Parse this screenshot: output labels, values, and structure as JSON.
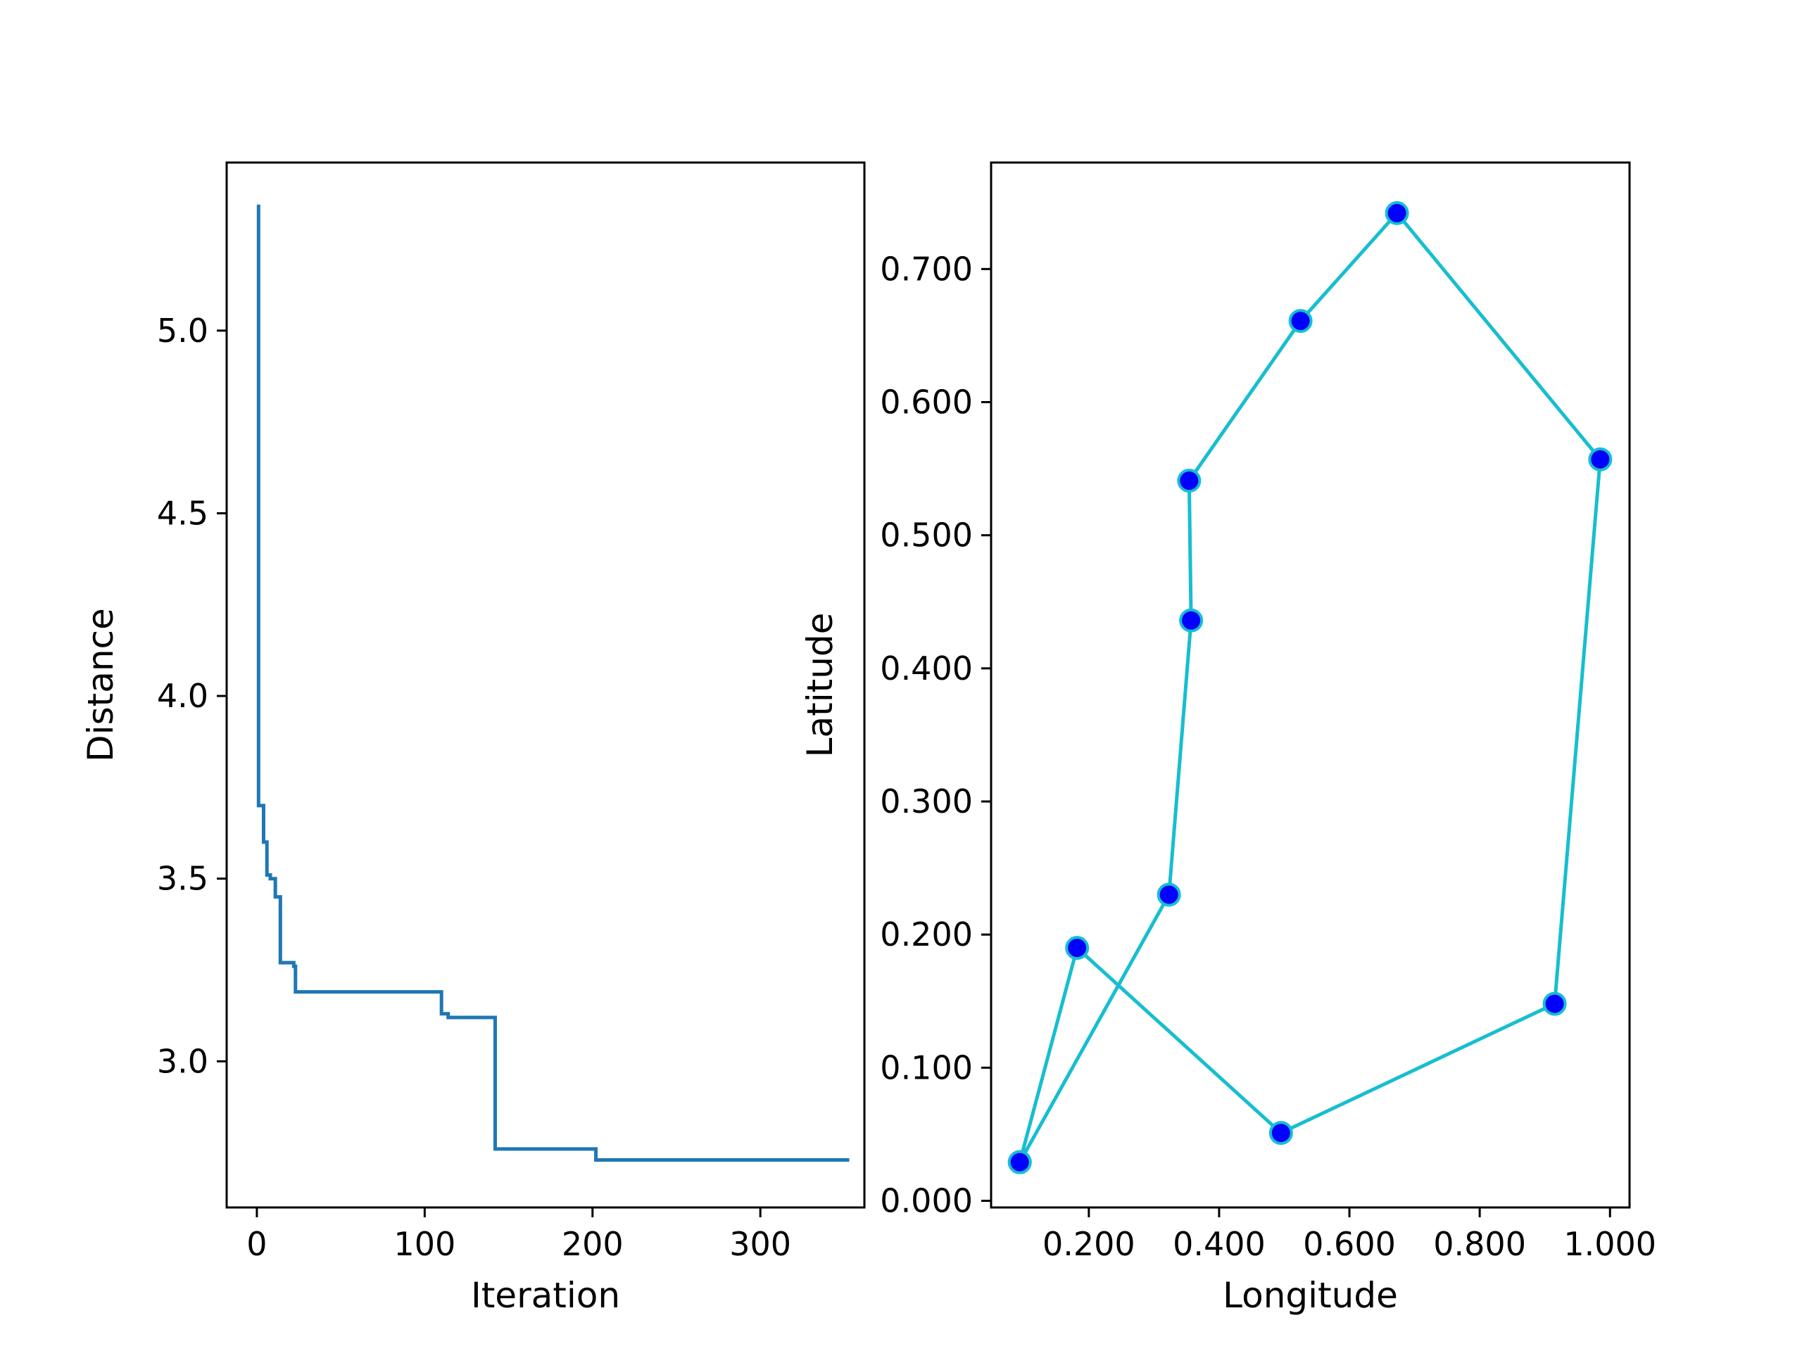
{
  "chart_data": [
    {
      "type": "line",
      "xlabel": "Iteration",
      "ylabel": "Distance",
      "xlim": [
        -18,
        362
      ],
      "ylim": [
        2.6,
        5.46
      ],
      "xticks": [
        0,
        100,
        200,
        300
      ],
      "xtick_labels": [
        "0",
        "100",
        "200",
        "300"
      ],
      "yticks": [
        3.0,
        3.5,
        4.0,
        4.5,
        5.0
      ],
      "ytick_labels": [
        "3.0",
        "3.5",
        "4.0",
        "4.5",
        "5.0"
      ],
      "grid": false,
      "series": [
        {
          "color": "#1f77b4",
          "step": true,
          "x": [
            0,
            1,
            4,
            6,
            8,
            11,
            12,
            13,
            14,
            16,
            20,
            22,
            23,
            109,
            110,
            113,
            114,
            141,
            142,
            200,
            202,
            353
          ],
          "y": [
            5.34,
            3.7,
            3.6,
            3.51,
            3.5,
            3.45,
            3.45,
            3.45,
            3.27,
            3.27,
            3.27,
            3.26,
            3.19,
            3.19,
            3.13,
            3.13,
            3.12,
            3.12,
            2.76,
            2.76,
            2.73,
            2.73
          ]
        }
      ]
    },
    {
      "type": "scatter",
      "xlabel": "Longitude",
      "ylabel": "Latitude",
      "xlim": [
        0.05,
        1.03
      ],
      "ylim": [
        -0.005,
        0.78
      ],
      "xticks": [
        0.2,
        0.4,
        0.6,
        0.8,
        1.0
      ],
      "xtick_labels": [
        "0.200",
        "0.400",
        "0.600",
        "0.800",
        "1.000"
      ],
      "yticks": [
        0.0,
        0.1,
        0.2,
        0.3,
        0.4,
        0.5,
        0.6,
        0.7
      ],
      "ytick_labels": [
        "0.000",
        "0.100",
        "0.200",
        "0.300",
        "0.400",
        "0.500",
        "0.600",
        "0.700"
      ],
      "grid": false,
      "line_color": "#17becf",
      "marker_face": "#0000ff",
      "marker_edge": "#17becf",
      "points": [
        {
          "x": 0.094,
          "y": 0.029
        },
        {
          "x": 0.182,
          "y": 0.19
        },
        {
          "x": 0.495,
          "y": 0.051
        },
        {
          "x": 0.915,
          "y": 0.148
        },
        {
          "x": 0.985,
          "y": 0.557
        },
        {
          "x": 0.673,
          "y": 0.742
        },
        {
          "x": 0.525,
          "y": 0.661
        },
        {
          "x": 0.354,
          "y": 0.541
        },
        {
          "x": 0.357,
          "y": 0.436
        },
        {
          "x": 0.323,
          "y": 0.23
        },
        {
          "x": 0.094,
          "y": 0.029
        }
      ]
    }
  ]
}
